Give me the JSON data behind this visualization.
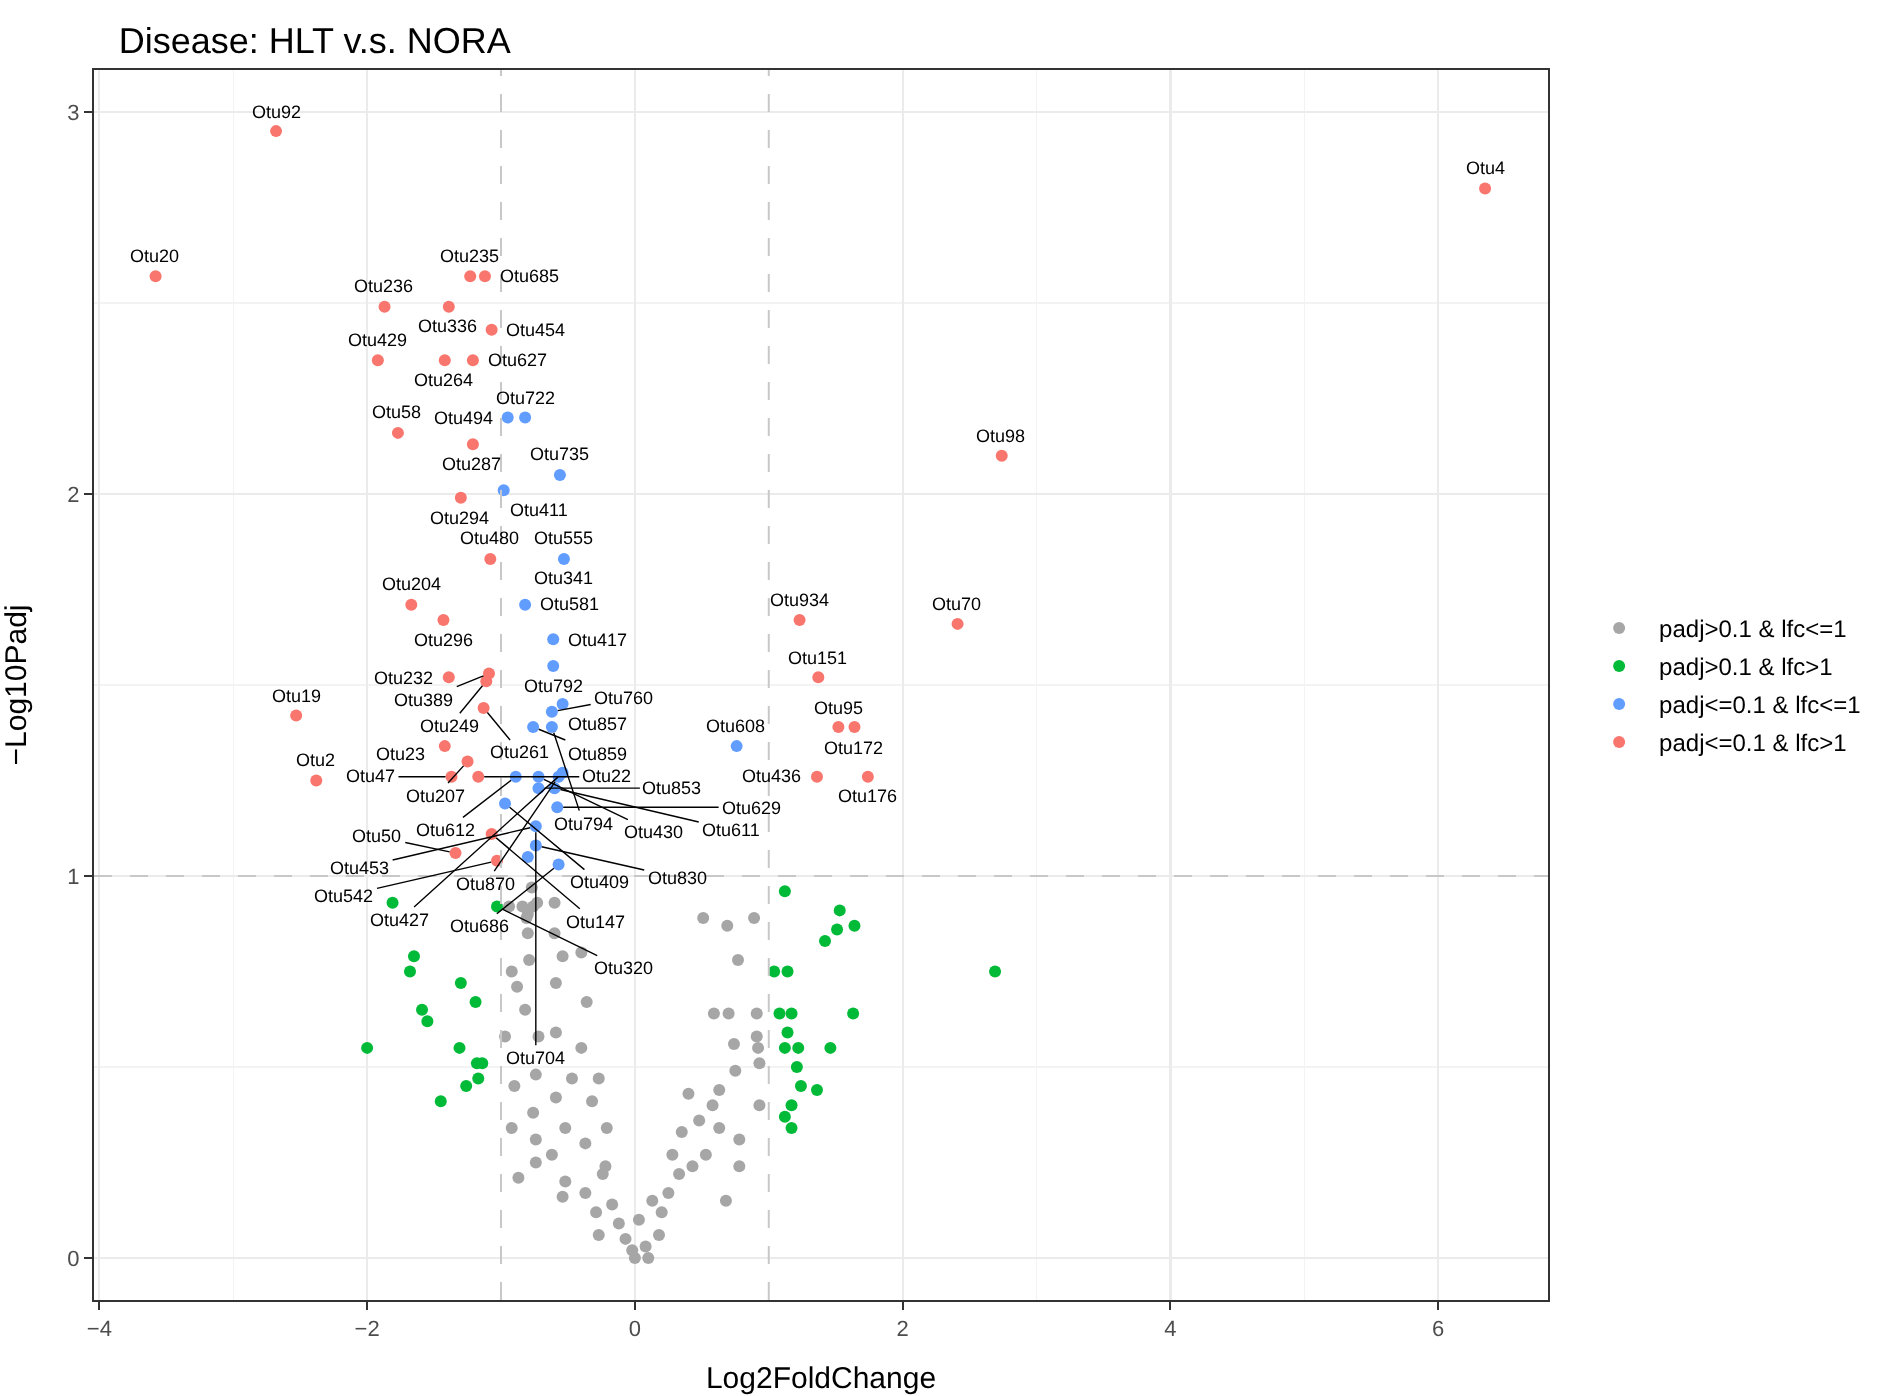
{
  "chart_data": {
    "type": "scatter",
    "title": "Disease: HLT v.s. NORA",
    "xlabel": "Log2FoldChange",
    "ylabel": "−Log10Padj",
    "xlim": [
      -4.04,
      6.82
    ],
    "xticks": [
      {
        "value": -4,
        "label": "−4"
      },
      {
        "value": -2,
        "label": "−2"
      },
      0,
      2,
      4,
      6
    ],
    "ylim": [
      -0.11,
      3.11
    ],
    "yticks": [
      0,
      1,
      2,
      3
    ],
    "grid": true,
    "legend": "right",
    "marker": "circle",
    "ref_lines": [
      {
        "axis": "x",
        "value": -1,
        "color": "#c8c8c8",
        "line_style": "dashed"
      },
      {
        "axis": "x",
        "value": 1,
        "color": "#c8c8c8",
        "line_style": "dashed"
      },
      {
        "axis": "y",
        "value": 1,
        "color": "#c8c8c8",
        "line_style": "dashed"
      }
    ],
    "series": [
      {
        "name": "padj>0.1 & lfc<=1",
        "color": "#a6a6a6",
        "x": [
          -0.77,
          -0.76,
          -0.8,
          -0.8,
          -0.79,
          -0.54,
          -0.4,
          -0.92,
          -0.88,
          -0.59,
          -0.36,
          -0.82,
          -0.97,
          -0.72,
          -0.59,
          -0.4,
          -0.74,
          -0.47,
          -0.27,
          -0.9,
          -0.59,
          -0.32,
          -0.76,
          -0.92,
          -0.52,
          -0.21,
          -0.74,
          -0.37,
          -0.62,
          -0.74,
          -0.22,
          -0.87,
          -0.52,
          -0.37,
          -0.54,
          -0.17,
          -0.29,
          -0.12,
          -0.27,
          -0.07,
          0,
          0.08,
          0.18,
          0.2,
          0.25,
          0.33,
          0.28,
          0.43,
          0.35,
          0.53,
          0.63,
          0.48,
          0.78,
          0.68,
          0.78,
          0.4,
          0.58,
          0.63,
          0.93,
          0.93,
          0.75,
          0.92,
          0.74,
          0.91,
          0.59,
          0.7,
          0.91,
          0.77,
          0.51,
          0.69,
          0.89,
          -0.24,
          0.13,
          0.03,
          -0.02,
          0.1,
          -0.6,
          -0.84,
          -0.73,
          -0.81,
          -0.6,
          -0.94
        ],
        "values": [
          0.97,
          0.92,
          0.9,
          0.85,
          0.78,
          0.79,
          0.8,
          0.75,
          0.71,
          0.72,
          0.67,
          0.65,
          0.58,
          0.58,
          0.59,
          0.55,
          0.48,
          0.47,
          0.47,
          0.45,
          0.42,
          0.41,
          0.38,
          0.34,
          0.34,
          0.34,
          0.31,
          0.3,
          0.27,
          0.25,
          0.24,
          0.21,
          0.2,
          0.17,
          0.16,
          0.14,
          0.12,
          0.09,
          0.06,
          0.05,
          0,
          0.03,
          0.06,
          0.12,
          0.17,
          0.22,
          0.27,
          0.24,
          0.33,
          0.27,
          0.34,
          0.36,
          0.31,
          0.15,
          0.24,
          0.43,
          0.4,
          0.44,
          0.4,
          0.51,
          0.49,
          0.55,
          0.56,
          0.58,
          0.64,
          0.64,
          0.64,
          0.78,
          0.89,
          0.87,
          0.89,
          0.22,
          0.15,
          0.1,
          0.02,
          0,
          0.93,
          0.92,
          0.93,
          0.89,
          0.85,
          0.92
        ]
      },
      {
        "name": "padj>0.1 & lfc>1",
        "color": "#00ba38",
        "x": [
          -1.81,
          -1.65,
          -1.68,
          -1.3,
          -1.19,
          -1.59,
          -1.55,
          -2,
          -1.31,
          -1.18,
          -1.14,
          -1.17,
          -1.26,
          -1.45,
          -1.03,
          1.12,
          1.53,
          1.51,
          1.64,
          1.42,
          1.04,
          1.14,
          1.08,
          1.17,
          1.63,
          1.14,
          1.12,
          1.22,
          1.46,
          1.21,
          1.24,
          1.36,
          1.17,
          1.12,
          1.17,
          2.69
        ],
        "values": [
          0.93,
          0.79,
          0.75,
          0.72,
          0.67,
          0.65,
          0.62,
          0.55,
          0.55,
          0.51,
          0.51,
          0.47,
          0.45,
          0.41,
          0.92,
          0.96,
          0.91,
          0.86,
          0.87,
          0.83,
          0.75,
          0.75,
          0.64,
          0.64,
          0.64,
          0.59,
          0.55,
          0.55,
          0.55,
          0.5,
          0.45,
          0.44,
          0.4,
          0.37,
          0.34,
          0.75
        ]
      },
      {
        "name": "padj<=0.1 & lfc<=1",
        "color": "#619cff",
        "x": [
          -0.95,
          -0.82,
          -0.56,
          -0.98,
          -0.53,
          -0.82,
          -0.61,
          -0.61,
          -0.54,
          -0.62,
          -0.76,
          -0.62,
          -0.89,
          -0.72,
          -0.57,
          -0.54,
          -0.72,
          -0.6,
          -0.97,
          -0.58,
          -0.74,
          -0.74,
          -0.8,
          -0.57,
          0.76
        ],
        "values": [
          2.2,
          2.2,
          2.05,
          2.01,
          1.83,
          1.71,
          1.62,
          1.55,
          1.45,
          1.43,
          1.39,
          1.39,
          1.26,
          1.26,
          1.26,
          1.27,
          1.23,
          1.23,
          1.19,
          1.18,
          1.13,
          1.08,
          1.05,
          1.03,
          1.34
        ]
      },
      {
        "name": "padj<=0.1 & lfc>1",
        "color": "#f8766d",
        "x": [
          -2.68,
          6.35,
          -3.58,
          -1.23,
          -1.12,
          -1.39,
          -1.87,
          -1.07,
          -1.92,
          -1.42,
          -1.21,
          -1.77,
          -1.21,
          -1.3,
          -1.08,
          -1.67,
          -1.43,
          -1.39,
          -1.09,
          -1.11,
          -1.13,
          -2.53,
          -1.42,
          -1.25,
          -2.38,
          -1.37,
          -1.17,
          -1.07,
          -1.34,
          -1.03,
          1.23,
          2.41,
          1.37,
          1.52,
          1.64,
          1.36,
          1.74,
          2.74
        ],
        "values": [
          2.95,
          2.8,
          2.57,
          2.57,
          2.57,
          2.49,
          2.49,
          2.43,
          2.35,
          2.35,
          2.35,
          2.16,
          2.13,
          1.99,
          1.83,
          1.71,
          1.67,
          1.52,
          1.53,
          1.51,
          1.44,
          1.42,
          1.34,
          1.3,
          1.25,
          1.26,
          1.26,
          1.11,
          1.06,
          1.04,
          1.67,
          1.66,
          1.52,
          1.39,
          1.39,
          1.26,
          1.26,
          2.1
        ]
      }
    ],
    "annotations": [
      {
        "text": "Otu92",
        "x": -2.68,
        "y": 2.95
      },
      {
        "text": "Otu4",
        "x": 6.35,
        "y": 2.8
      },
      {
        "text": "Otu20",
        "x": -3.58,
        "y": 2.57
      },
      {
        "text": "Otu235",
        "x": -1.23,
        "y": 2.57
      },
      {
        "text": "Otu685",
        "x": -1.12,
        "y": 2.57
      },
      {
        "text": "Otu336",
        "x": -1.39,
        "y": 2.49
      },
      {
        "text": "Otu236",
        "x": -1.87,
        "y": 2.49
      },
      {
        "text": "Otu454",
        "x": -1.07,
        "y": 2.43
      },
      {
        "text": "Otu429",
        "x": -1.92,
        "y": 2.35
      },
      {
        "text": "Otu264",
        "x": -1.42,
        "y": 2.35
      },
      {
        "text": "Otu627",
        "x": -1.21,
        "y": 2.35
      },
      {
        "text": "Otu58",
        "x": -1.77,
        "y": 2.16
      },
      {
        "text": "Otu287",
        "x": -1.21,
        "y": 2.13
      },
      {
        "text": "Otu294",
        "x": -1.3,
        "y": 1.99
      },
      {
        "text": "Otu494",
        "x": -0.95,
        "y": 2.2
      },
      {
        "text": "Otu722",
        "x": -0.82,
        "y": 2.2
      },
      {
        "text": "Otu735",
        "x": -0.56,
        "y": 2.05
      },
      {
        "text": "Otu411",
        "x": -0.98,
        "y": 2.01
      },
      {
        "text": "Otu480",
        "x": -1.08,
        "y": 1.83
      },
      {
        "text": "Otu555",
        "x": -0.53,
        "y": 1.83
      },
      {
        "text": "Otu341",
        "x": -0.53,
        "y": 1.83
      },
      {
        "text": "Otu204",
        "x": -1.67,
        "y": 1.71
      },
      {
        "text": "Otu581",
        "x": -0.82,
        "y": 1.71
      },
      {
        "text": "Otu296",
        "x": -1.43,
        "y": 1.67
      },
      {
        "text": "Otu417",
        "x": -0.61,
        "y": 1.62
      },
      {
        "text": "Otu792",
        "x": -0.61,
        "y": 1.55
      },
      {
        "text": "Otu232",
        "x": -1.39,
        "y": 1.52
      },
      {
        "text": "Otu389",
        "x": -1.09,
        "y": 1.53
      },
      {
        "text": "Otu249",
        "x": -1.11,
        "y": 1.51
      },
      {
        "text": "Otu261",
        "x": -1.13,
        "y": 1.44
      },
      {
        "text": "Otu857",
        "x": -0.54,
        "y": 1.45
      },
      {
        "text": "Otu760",
        "x": -0.62,
        "y": 1.43
      },
      {
        "text": "Otu859",
        "x": -0.76,
        "y": 1.39
      },
      {
        "text": "Otu794",
        "x": -0.62,
        "y": 1.39
      },
      {
        "text": "Otu19",
        "x": -2.53,
        "y": 1.42
      },
      {
        "text": "Otu23",
        "x": -1.42,
        "y": 1.34
      },
      {
        "text": "Otu207",
        "x": -1.25,
        "y": 1.3
      },
      {
        "text": "Otu2",
        "x": -2.38,
        "y": 1.25
      },
      {
        "text": "Otu47",
        "x": -1.37,
        "y": 1.26
      },
      {
        "text": "Otu22",
        "x": -1.17,
        "y": 1.26
      },
      {
        "text": "Otu612",
        "x": -0.89,
        "y": 1.26
      },
      {
        "text": "Otu430",
        "x": -0.72,
        "y": 1.26
      },
      {
        "text": "Otu870",
        "x": -0.57,
        "y": 1.26
      },
      {
        "text": "Otu427",
        "x": -0.54,
        "y": 1.27
      },
      {
        "text": "Otu853",
        "x": -0.72,
        "y": 1.23
      },
      {
        "text": "Otu611",
        "x": -0.6,
        "y": 1.23
      },
      {
        "text": "Otu409",
        "x": -0.97,
        "y": 1.19
      },
      {
        "text": "Otu629",
        "x": -0.58,
        "y": 1.18
      },
      {
        "text": "Otu453",
        "x": -0.74,
        "y": 1.13
      },
      {
        "text": "Otu704",
        "x": -0.74,
        "y": 1.13
      },
      {
        "text": "Otu830",
        "x": -0.74,
        "y": 1.08
      },
      {
        "text": "Otu686",
        "x": -0.57,
        "y": 1.03
      },
      {
        "text": "Otu147",
        "x": -1.07,
        "y": 1.11
      },
      {
        "text": "Otu50",
        "x": -1.34,
        "y": 1.06
      },
      {
        "text": "Otu542",
        "x": -1.03,
        "y": 1.04
      },
      {
        "text": "Otu320",
        "x": -1.03,
        "y": 0.92
      },
      {
        "text": "Otu608",
        "x": 0.76,
        "y": 1.34
      },
      {
        "text": "Otu934",
        "x": 1.23,
        "y": 1.67
      },
      {
        "text": "Otu70",
        "x": 2.41,
        "y": 1.66
      },
      {
        "text": "Otu151",
        "x": 1.37,
        "y": 1.52
      },
      {
        "text": "Otu95",
        "x": 1.52,
        "y": 1.39
      },
      {
        "text": "Otu172",
        "x": 1.64,
        "y": 1.39
      },
      {
        "text": "Otu436",
        "x": 1.36,
        "y": 1.26
      },
      {
        "text": "Otu176",
        "x": 1.74,
        "y": 1.26
      },
      {
        "text": "Otu98",
        "x": 2.74,
        "y": 2.1
      }
    ]
  }
}
